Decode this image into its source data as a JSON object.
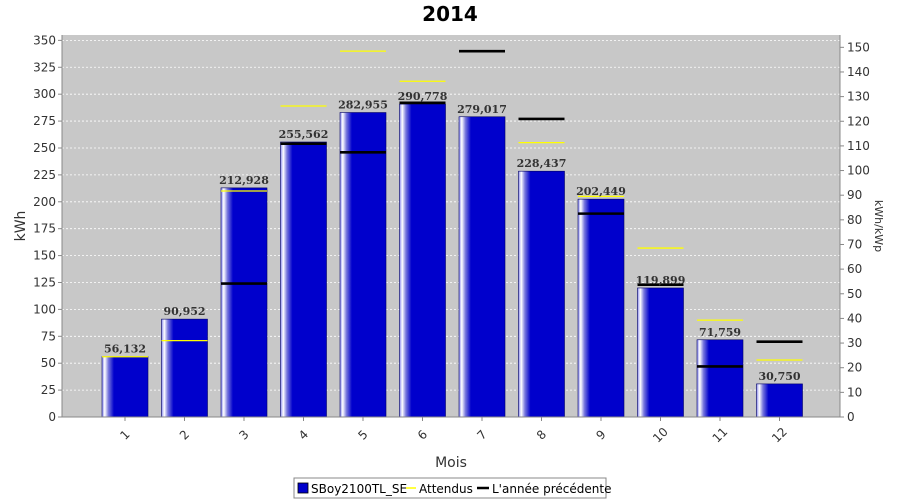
{
  "chart_data": {
    "type": "bar",
    "title": "2014",
    "xlabel": "Mois",
    "ylabel": "kWh",
    "y2label": "kWh/kWp",
    "categories": [
      "1",
      "2",
      "3",
      "4",
      "5",
      "6",
      "7",
      "8",
      "9",
      "10",
      "11",
      "12"
    ],
    "ylim": [
      0,
      355
    ],
    "y2lim": [
      0,
      155
    ],
    "yticks": [
      0,
      25,
      50,
      75,
      100,
      125,
      150,
      175,
      200,
      225,
      250,
      275,
      300,
      325,
      350
    ],
    "y2ticks": [
      0,
      10,
      20,
      30,
      40,
      50,
      60,
      70,
      80,
      90,
      100,
      110,
      120,
      130,
      140,
      150
    ],
    "series": [
      {
        "name": "SBoy2100TL_SE",
        "kind": "bar",
        "color": "#0000cc",
        "values": [
          56.132,
          90.952,
          212.928,
          255.562,
          282.955,
          290.778,
          279.017,
          228.437,
          202.449,
          119.899,
          71.759,
          30.75
        ],
        "labels": [
          "56,132",
          "90,952",
          "212,928",
          "255,562",
          "282,955",
          "290,778",
          "279,017",
          "228,437",
          "202,449",
          "119,899",
          "71,759",
          "30,750"
        ]
      },
      {
        "name": "Attendus",
        "kind": "marker",
        "color": "#ffff00",
        "values": [
          56,
          71,
          210,
          289,
          340,
          312,
          null,
          255,
          205,
          157,
          90,
          53
        ]
      },
      {
        "name": "L'année précédente",
        "kind": "marker",
        "color": "#000000",
        "values": [
          null,
          null,
          124,
          254,
          246,
          292,
          340,
          277,
          189,
          123,
          47,
          70
        ]
      }
    ],
    "grid": true,
    "legend_position": "bottom"
  }
}
